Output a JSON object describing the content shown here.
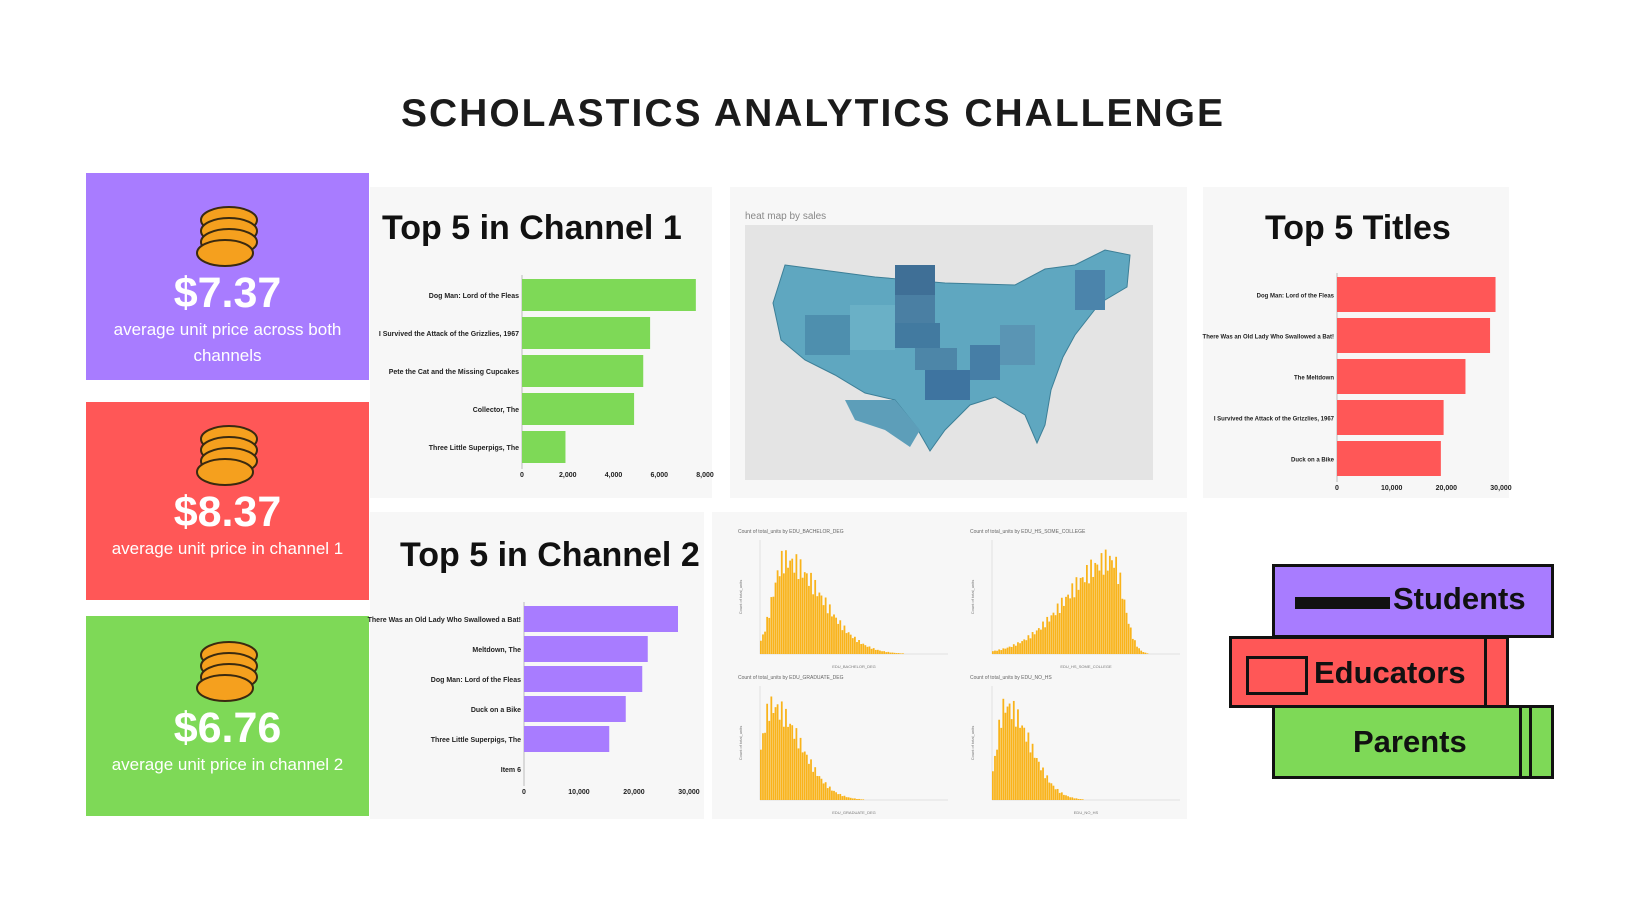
{
  "page": {
    "title": "SCHOLASTICS ANALYTICS CHALLENGE"
  },
  "stats": [
    {
      "value": "$7.37",
      "description": "average unit price across both channels",
      "color": "#a87cff"
    },
    {
      "value": "$8.37",
      "description": "average unit price in channel 1",
      "color": "#ff5757"
    },
    {
      "value": "$6.76",
      "description": "average unit price in channel 2",
      "color": "#7ed957"
    }
  ],
  "map": {
    "caption": "heat map by sales"
  },
  "books": [
    {
      "label": "Students",
      "color": "#a87cff"
    },
    {
      "label": "Educators",
      "color": "#ff5757"
    },
    {
      "label": "Parents",
      "color": "#7ed957"
    }
  ],
  "chart_data": [
    {
      "id": "channel1",
      "type": "bar",
      "orientation": "horizontal",
      "title": "Top 5  in Channel 1",
      "color": "#7ed957",
      "categories": [
        "Dog Man: Lord of the Fleas",
        "I Survived the Attack of the Grizzlies, 1967",
        "Pete the Cat and the Missing Cupcakes",
        "Collector, The",
        "Three Little Superpigs, The"
      ],
      "values": [
        7600,
        5600,
        5300,
        4900,
        1900
      ],
      "xlim": [
        0,
        8000
      ],
      "xticks": [
        "0",
        "2,000",
        "4,000",
        "6,000",
        "8,000"
      ]
    },
    {
      "id": "titles",
      "type": "bar",
      "orientation": "horizontal",
      "title": "Top 5 Titles",
      "color": "#ff5757",
      "categories": [
        "Dog Man: Lord of the Fleas",
        "There Was an Old Lady Who Swallowed a Bat!",
        "The Meltdown",
        "I Survived the Attack of the Grizzlies, 1967",
        "Duck on a Bike"
      ],
      "values": [
        29000,
        28000,
        23500,
        19500,
        19000
      ],
      "xlim": [
        0,
        30000
      ],
      "xticks": [
        "0",
        "10,000",
        "20,000",
        "30,000"
      ]
    },
    {
      "id": "channel2",
      "type": "bar",
      "orientation": "horizontal",
      "title": "Top 5 in Channel 2",
      "color": "#a87cff",
      "categories": [
        "There Was an Old Lady Who Swallowed a Bat!",
        "Meltdown, The",
        "Dog Man: Lord of the Fleas",
        "Duck on a Bike",
        "Three Little Superpigs, The",
        "Item 6"
      ],
      "values": [
        28000,
        22500,
        21500,
        18500,
        15500,
        null
      ],
      "xlim": [
        0,
        30000
      ],
      "xticks": [
        "0",
        "10,000",
        "20,000",
        "30,000"
      ]
    },
    {
      "id": "histograms",
      "type": "bar",
      "charts": [
        {
          "title": "Count of total_units by EDU_BACHELOR_DEG",
          "xlabel": "EDU_BACHELOR_DEG",
          "ylabel": "Count of total_units",
          "peak": 0.13,
          "spread": 0.09,
          "skew": "right"
        },
        {
          "title": "Count of total_units by EDU_HS_SOME_COLLEGE",
          "xlabel": "EDU_HS_SOME_COLLEGE",
          "ylabel": "Count of total_units",
          "peak": 0.64,
          "spread": 0.12,
          "skew": "left"
        },
        {
          "title": "Count of total_units by EDU_GRADUATE_DEG",
          "xlabel": "EDU_GRADUATE_DEG",
          "ylabel": "Count of total_units",
          "peak": 0.06,
          "spread": 0.07,
          "skew": "right"
        },
        {
          "title": "Count of total_units by EDU_NO_HS",
          "xlabel": "EDU_NO_HS",
          "ylabel": "Count of total_units",
          "peak": 0.07,
          "spread": 0.06,
          "skew": "right"
        }
      ],
      "color": "#f9b31a"
    }
  ]
}
